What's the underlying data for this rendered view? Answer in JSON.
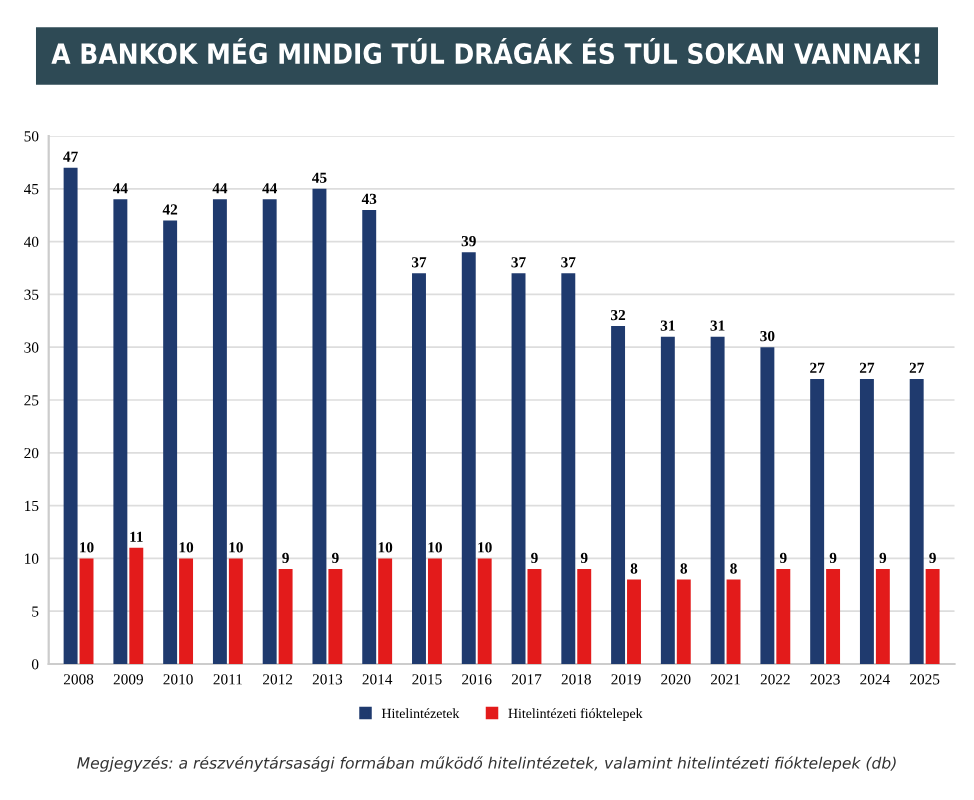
{
  "chart_data": {
    "type": "bar",
    "title": "A BANKOK MÉG MINDIG TÚL DRÁGÁK ÉS TÚL SOKAN VANNAK!",
    "categories": [
      "2008",
      "2009",
      "2010",
      "2011",
      "2012",
      "2013",
      "2014",
      "2015",
      "2016",
      "2017",
      "2018",
      "2019",
      "2020",
      "2021",
      "2022",
      "2023",
      "2024",
      "2025"
    ],
    "series": [
      {
        "name": "Hitelintézetek",
        "color": "#1f3a6e",
        "values": [
          47,
          44,
          42,
          44,
          44,
          45,
          43,
          37,
          39,
          37,
          37,
          32,
          31,
          31,
          30,
          27,
          27,
          27
        ]
      },
      {
        "name": "Hitelintézeti fióktelepek",
        "color": "#e31b1b",
        "values": [
          10,
          11,
          10,
          10,
          9,
          9,
          10,
          10,
          10,
          9,
          9,
          8,
          8,
          8,
          9,
          9,
          9,
          9
        ]
      }
    ],
    "ylim": [
      0,
      50
    ],
    "yticks": [
      0,
      5,
      10,
      15,
      20,
      25,
      30,
      35,
      40,
      45,
      50
    ],
    "grid": "y",
    "legend": "bottom",
    "data_labels": true,
    "annotations": [
      "Megjegyzés: a részvénytársasági formában működő hitelintézetek, valamint hitelintézeti fióktelepek (db)"
    ]
  }
}
